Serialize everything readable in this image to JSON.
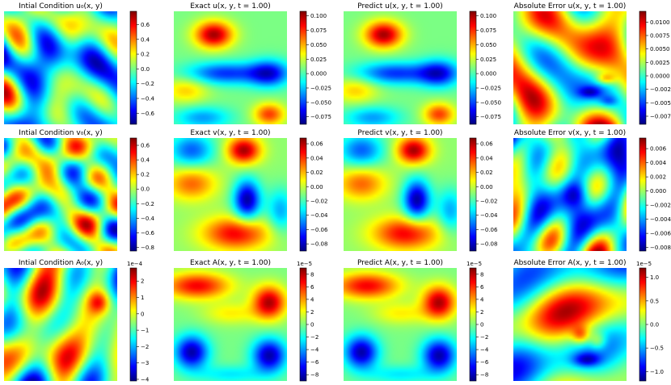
{
  "figure": {
    "colormap": "jet",
    "palette": [
      "#00007f",
      "#0000ff",
      "#007fff",
      "#00ffff",
      "#7fff7f",
      "#ffff00",
      "#ff7f00",
      "#ff0000",
      "#7f0000"
    ]
  },
  "chart_data": [
    {
      "type": "heatmap",
      "title": "Intial Condition u₀(x, y)",
      "colorbar": {
        "ticks": [
          0.6,
          0.4,
          0.2,
          0.0,
          -0.2,
          -0.4,
          -0.6
        ],
        "tick_labels": [
          "0.6",
          "0.4",
          "0.2",
          "0.0",
          "−0.2",
          "−0.4",
          "−0.6"
        ],
        "range": [
          -0.75,
          0.78
        ],
        "exponent": ""
      },
      "pattern": {
        "seed": 11,
        "k": 4.2,
        "blobs": []
      }
    },
    {
      "type": "heatmap",
      "title": "Exact u(x, y, t = 1.00)",
      "colorbar": {
        "ticks": [
          0.1,
          0.075,
          0.05,
          0.025,
          0.0,
          -0.025,
          -0.05,
          -0.075
        ],
        "tick_labels": [
          "0.100",
          "0.075",
          "0.050",
          "0.025",
          "0.000",
          "−0.025",
          "−0.050",
          "−0.075"
        ],
        "range": [
          -0.088,
          0.108
        ],
        "exponent": ""
      },
      "pattern": {
        "seed": 0,
        "k": 0,
        "blobs": [
          [
            0.35,
            0.2,
            0.17,
            0.12,
            1.3
          ],
          [
            0.1,
            0.7,
            0.2,
            0.12,
            0.5
          ],
          [
            0.85,
            0.92,
            0.14,
            0.1,
            0.9
          ],
          [
            0.45,
            0.55,
            0.35,
            0.1,
            -0.9
          ],
          [
            0.85,
            0.55,
            0.18,
            0.12,
            -1.0
          ],
          [
            0.25,
            0.95,
            0.25,
            0.1,
            -0.6
          ]
        ]
      }
    },
    {
      "type": "heatmap",
      "title": "Predict u(x, y, t = 1.00)",
      "colorbar": {
        "ticks": [
          0.1,
          0.075,
          0.05,
          0.025,
          0.0,
          -0.025,
          -0.05,
          -0.075
        ],
        "tick_labels": [
          "0.100",
          "0.075",
          "0.050",
          "0.025",
          "0.000",
          "−0.025",
          "−0.050",
          "−0.075"
        ],
        "range": [
          -0.088,
          0.108
        ],
        "exponent": ""
      },
      "pattern": {
        "seed": 0,
        "k": 0,
        "blobs": [
          [
            0.35,
            0.2,
            0.17,
            0.12,
            1.3
          ],
          [
            0.1,
            0.7,
            0.2,
            0.12,
            0.5
          ],
          [
            0.85,
            0.92,
            0.14,
            0.1,
            0.9
          ],
          [
            0.45,
            0.55,
            0.35,
            0.1,
            -0.9
          ],
          [
            0.85,
            0.55,
            0.18,
            0.12,
            -1.0
          ],
          [
            0.25,
            0.95,
            0.25,
            0.1,
            -0.6
          ]
        ]
      }
    },
    {
      "type": "heatmap",
      "title": "Absolute Error u(x, y, t = 1.00)",
      "colorbar": {
        "ticks": [
          0.01,
          0.0075,
          0.005,
          0.0025,
          0.0,
          -0.0025,
          -0.005,
          -0.0075
        ],
        "tick_labels": [
          "0.0100",
          "0.0075",
          "0.0050",
          "0.0025",
          "0.0000",
          "−0.0025",
          "−0.0050",
          "−0.0075"
        ],
        "range": [
          -0.009,
          0.012
        ],
        "exponent": ""
      },
      "pattern": {
        "seed": 23,
        "k": 3.0,
        "blobs": [
          [
            0.82,
            0.6,
            0.09,
            0.05,
            1.4
          ],
          [
            0.68,
            0.72,
            0.1,
            0.05,
            -1.2
          ],
          [
            0.85,
            0.8,
            0.08,
            0.05,
            -0.9
          ]
        ]
      }
    },
    {
      "type": "heatmap",
      "title": "Intial Condition v₀(x, y)",
      "colorbar": {
        "ticks": [
          0.6,
          0.4,
          0.2,
          0.0,
          -0.2,
          -0.4,
          -0.6,
          -0.8
        ],
        "tick_labels": [
          "0.6",
          "0.4",
          "0.2",
          "0.0",
          "−0.2",
          "−0.4",
          "−0.6",
          "−0.8"
        ],
        "range": [
          -0.85,
          0.7
        ],
        "exponent": ""
      },
      "pattern": {
        "seed": 37,
        "k": 4.5,
        "blobs": []
      }
    },
    {
      "type": "heatmap",
      "title": "Exact v(x, y, t = 1.00)",
      "colorbar": {
        "ticks": [
          0.06,
          0.04,
          0.02,
          0.0,
          -0.02,
          -0.04,
          -0.06,
          -0.08
        ],
        "tick_labels": [
          "0.06",
          "0.04",
          "0.02",
          "0.00",
          "−0.02",
          "−0.04",
          "−0.06",
          "−0.08"
        ],
        "range": [
          -0.09,
          0.068
        ],
        "exponent": ""
      },
      "pattern": {
        "seed": 0,
        "k": 0,
        "blobs": [
          [
            0.62,
            0.1,
            0.15,
            0.12,
            1.2
          ],
          [
            0.15,
            0.4,
            0.22,
            0.15,
            0.7
          ],
          [
            0.55,
            0.85,
            0.3,
            0.15,
            1.0
          ],
          [
            0.65,
            0.55,
            0.12,
            0.18,
            -1.3
          ],
          [
            0.15,
            0.1,
            0.2,
            0.15,
            -0.8
          ],
          [
            0.95,
            0.65,
            0.12,
            0.2,
            -0.6
          ]
        ]
      }
    },
    {
      "type": "heatmap",
      "title": "Predict v(x, y, t = 1.00)",
      "colorbar": {
        "ticks": [
          0.06,
          0.04,
          0.02,
          0.0,
          -0.02,
          -0.04,
          -0.06,
          -0.08
        ],
        "tick_labels": [
          "0.06",
          "0.04",
          "0.02",
          "0.00",
          "−0.02",
          "−0.04",
          "−0.06",
          "−0.08"
        ],
        "range": [
          -0.09,
          0.068
        ],
        "exponent": ""
      },
      "pattern": {
        "seed": 0,
        "k": 0,
        "blobs": [
          [
            0.62,
            0.1,
            0.15,
            0.12,
            1.2
          ],
          [
            0.15,
            0.4,
            0.22,
            0.15,
            0.7
          ],
          [
            0.55,
            0.85,
            0.3,
            0.15,
            1.0
          ],
          [
            0.65,
            0.55,
            0.12,
            0.18,
            -1.3
          ],
          [
            0.15,
            0.1,
            0.2,
            0.15,
            -0.8
          ],
          [
            0.95,
            0.65,
            0.12,
            0.2,
            -0.6
          ]
        ]
      }
    },
    {
      "type": "heatmap",
      "title": "Absolute Error v(x, y, t = 1.00)",
      "colorbar": {
        "ticks": [
          0.006,
          0.004,
          0.002,
          0.0,
          -0.002,
          -0.004,
          -0.006,
          -0.008
        ],
        "tick_labels": [
          "0.006",
          "0.004",
          "0.002",
          "0.000",
          "−0.002",
          "−0.004",
          "−0.006",
          "−0.008"
        ],
        "range": [
          -0.0085,
          0.0075
        ],
        "exponent": ""
      },
      "pattern": {
        "seed": 51,
        "k": 3.8,
        "blobs": [
          [
            0.55,
            0.5,
            0.12,
            0.12,
            -1.3
          ]
        ]
      }
    },
    {
      "type": "heatmap",
      "title": "Intial Condition A₀(x, y)",
      "colorbar": {
        "ticks": [
          2,
          1,
          0,
          -1,
          -2,
          -3,
          -4
        ],
        "tick_labels": [
          "2",
          "1",
          "0",
          "−1",
          "−2",
          "−3",
          "−4"
        ],
        "range": [
          -4.1,
          2.8
        ],
        "exponent": "1e−4"
      },
      "pattern": {
        "seed": 71,
        "k": 3.2,
        "blobs": [
          [
            0.85,
            0.3,
            0.1,
            0.1,
            1.0
          ]
        ]
      }
    },
    {
      "type": "heatmap",
      "title": "Exact A(x, y, t = 1.00)",
      "colorbar": {
        "ticks": [
          8,
          6,
          4,
          2,
          0,
          -2,
          -4,
          -6,
          -8
        ],
        "tick_labels": [
          "8",
          "6",
          "4",
          "2",
          "0",
          "−2",
          "−4",
          "−6",
          "−8"
        ],
        "range": [
          -9,
          9
        ],
        "exponent": "1e−5"
      },
      "pattern": {
        "seed": 0,
        "k": 0,
        "blobs": [
          [
            0.2,
            0.15,
            0.3,
            0.12,
            1.1
          ],
          [
            0.85,
            0.3,
            0.15,
            0.15,
            1.3
          ],
          [
            0.5,
            0.4,
            0.25,
            0.1,
            0.4
          ],
          [
            0.15,
            0.75,
            0.15,
            0.15,
            -1.3
          ],
          [
            0.85,
            0.78,
            0.15,
            0.15,
            -1.3
          ],
          [
            0.5,
            0.95,
            0.3,
            0.08,
            -0.4
          ]
        ]
      }
    },
    {
      "type": "heatmap",
      "title": "Predict A(x, y, t = 1.00)",
      "colorbar": {
        "ticks": [
          8,
          6,
          4,
          2,
          0,
          -2,
          -4,
          -6,
          -8
        ],
        "tick_labels": [
          "8",
          "6",
          "4",
          "2",
          "0",
          "−2",
          "−4",
          "−6",
          "−8"
        ],
        "range": [
          -9,
          9
        ],
        "exponent": "1e−5"
      },
      "pattern": {
        "seed": 0,
        "k": 0,
        "blobs": [
          [
            0.2,
            0.15,
            0.3,
            0.12,
            1.1
          ],
          [
            0.85,
            0.3,
            0.15,
            0.15,
            1.3
          ],
          [
            0.5,
            0.4,
            0.25,
            0.1,
            0.4
          ],
          [
            0.15,
            0.75,
            0.15,
            0.15,
            -1.3
          ],
          [
            0.85,
            0.78,
            0.15,
            0.15,
            -1.3
          ],
          [
            0.5,
            0.95,
            0.3,
            0.08,
            -0.4
          ]
        ]
      }
    },
    {
      "type": "heatmap",
      "title": "Absolute Error A(x, y, t = 1.00)",
      "colorbar": {
        "ticks": [
          1.0,
          0.5,
          0.0,
          -0.5,
          -1.0
        ],
        "tick_labels": [
          "1.0",
          "0.5",
          "0.0",
          "−0.5",
          "−1.0"
        ],
        "range": [
          -1.2,
          1.2
        ],
        "exponent": "1e−5"
      },
      "pattern": {
        "seed": 97,
        "k": 2.6,
        "blobs": [
          [
            0.6,
            0.6,
            0.08,
            0.08,
            1.3
          ],
          [
            0.75,
            0.65,
            0.08,
            0.08,
            1.1
          ],
          [
            0.65,
            0.82,
            0.12,
            0.06,
            -1.2
          ]
        ]
      }
    }
  ]
}
